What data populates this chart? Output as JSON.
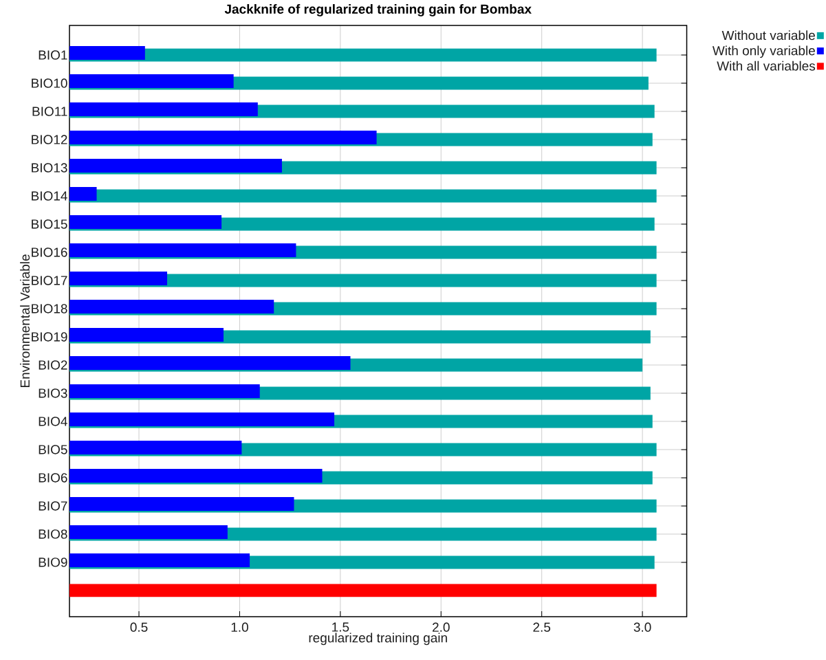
{
  "chart_data": {
    "type": "bar",
    "orientation": "horizontal",
    "title": "Jackknife of regularized training gain for Bombax",
    "xlabel": "regularized training gain",
    "ylabel": "Environmental Variable",
    "categories": [
      "BIO1",
      "BIO10",
      "BIO11",
      "BIO12",
      "BIO13",
      "BIO14",
      "BIO15",
      "BIO16",
      "BIO17",
      "BIO18",
      "BIO19",
      "BIO2",
      "BIO3",
      "BIO4",
      "BIO5",
      "BIO6",
      "BIO7",
      "BIO8",
      "BIO9",
      null
    ],
    "series": [
      {
        "name": "Without variable",
        "color": "#00a5a5",
        "values": [
          3.07,
          3.03,
          3.06,
          3.05,
          3.07,
          3.07,
          3.06,
          3.07,
          3.07,
          3.07,
          3.04,
          3.0,
          3.04,
          3.05,
          3.07,
          3.05,
          3.07,
          3.07,
          3.06,
          null
        ]
      },
      {
        "name": "With only variable",
        "color": "#0000ff",
        "values": [
          0.53,
          0.97,
          1.09,
          1.68,
          1.21,
          0.29,
          0.91,
          1.28,
          0.64,
          1.17,
          0.92,
          1.55,
          1.1,
          1.47,
          1.01,
          1.41,
          1.27,
          0.94,
          1.05,
          null
        ]
      },
      {
        "name": "With all variables",
        "color": "#ff0000",
        "values": [
          null,
          null,
          null,
          null,
          null,
          null,
          null,
          null,
          null,
          null,
          null,
          null,
          null,
          null,
          null,
          null,
          null,
          null,
          null,
          3.07
        ]
      }
    ],
    "xlim": [
      0.155,
      3.22
    ],
    "xticks": [
      0.5,
      {
        "value": 1,
        "label": "1.0"
      },
      1.5,
      {
        "value": 2,
        "label": "2.0"
      },
      2.5,
      {
        "value": 3,
        "label": "3.0"
      }
    ],
    "grid": true,
    "legend": "top right"
  }
}
